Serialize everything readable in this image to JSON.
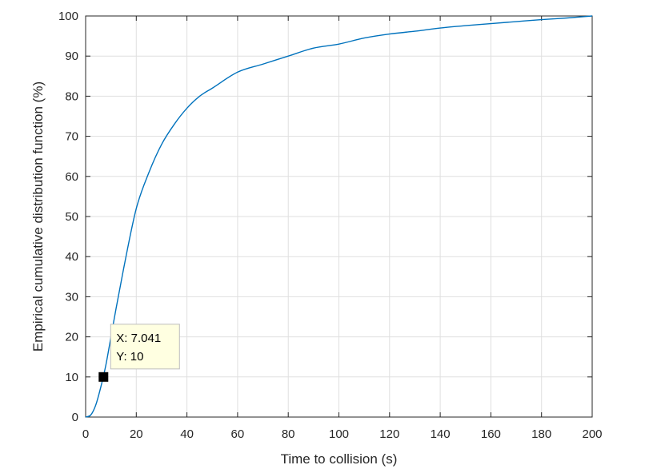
{
  "chart_data": {
    "type": "line",
    "title": "",
    "xlabel": "Time to collision (s)",
    "ylabel": "Empirical cumulative distribution function (%)",
    "xlim": [
      0,
      200
    ],
    "ylim": [
      0,
      100
    ],
    "xticks": [
      0,
      20,
      40,
      60,
      80,
      100,
      120,
      140,
      160,
      180,
      200
    ],
    "yticks": [
      0,
      10,
      20,
      30,
      40,
      50,
      60,
      70,
      80,
      90,
      100
    ],
    "xtick_labels": [
      "0",
      "20",
      "40",
      "60",
      "80",
      "100",
      "120",
      "140",
      "160",
      "180",
      "200"
    ],
    "ytick_labels": [
      "0",
      "10",
      "20",
      "30",
      "40",
      "50",
      "60",
      "70",
      "80",
      "90",
      "100"
    ],
    "grid": true,
    "box": true,
    "series": [
      {
        "color": "#0072BD",
        "x": [
          0,
          2,
          4,
          6,
          8,
          10,
          12,
          15,
          20,
          25,
          30,
          35,
          40,
          45,
          50,
          60,
          70,
          80,
          90,
          100,
          110,
          120,
          130,
          140,
          150,
          160,
          170,
          180,
          190,
          200
        ],
        "y": [
          0,
          0.5,
          3,
          7.5,
          13,
          20,
          27,
          37,
          52,
          61,
          68,
          73,
          77,
          80,
          82,
          86,
          88,
          90,
          92,
          93,
          94.5,
          95.5,
          96.2,
          97,
          97.6,
          98.1,
          98.6,
          99.1,
          99.5,
          100
        ]
      }
    ],
    "datatip": {
      "x": 7.041,
      "y": 10,
      "x_label": "X: 7.041",
      "y_label": "Y: 10"
    }
  },
  "colors": {
    "axis": "#262626",
    "grid": "#dfdfdf",
    "line": "#0072BD",
    "tip_background": "#ffffe1",
    "tip_border": "#bdbdbd",
    "marker": "#000000"
  }
}
